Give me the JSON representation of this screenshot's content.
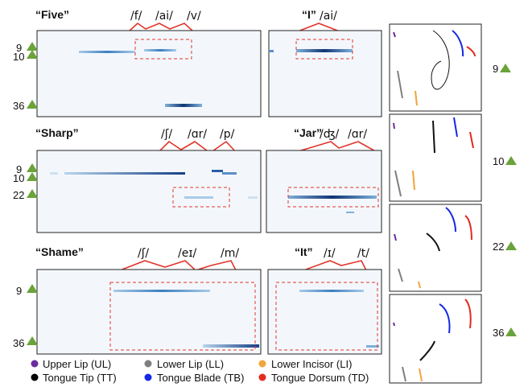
{
  "words": {
    "five": "“Five”",
    "i": "“I”",
    "sharp": "“Sharp”",
    "jar": "“Jar”",
    "shame": "“Shame”",
    "it": "“It”"
  },
  "phonemes": {
    "five": [
      "/f/",
      "/ai/",
      "/v/"
    ],
    "i": [
      "/ai/"
    ],
    "sharp": [
      "/ʃ/",
      "/ɑr/",
      "/p/"
    ],
    "jar": [
      "/ʤ/",
      "/ɑr/"
    ],
    "shame": [
      "/ʃ/",
      "/eɪ/",
      "/m/"
    ],
    "it": [
      "/ɪ/",
      "/t/"
    ]
  },
  "row_labels": {
    "row1": [
      "9",
      "10",
      "36"
    ],
    "row2": [
      "9",
      "10",
      "22"
    ],
    "row3": [
      "9",
      "36"
    ]
  },
  "side_labels": [
    "9",
    "10",
    "22",
    "36"
  ],
  "legend": [
    {
      "label": "Upper Lip (UL)",
      "color": "#6a2c9e"
    },
    {
      "label": "Lower Lip (LL)",
      "color": "#7f7f7f"
    },
    {
      "label": "Lower Incisor (LI)",
      "color": "#f2a43a"
    },
    {
      "label": "Tongue Tip (TT)",
      "color": "#000000"
    },
    {
      "label": "Tongue Blade (TB)",
      "color": "#1428e6"
    },
    {
      "label": "Tongue Dorsum (TD)",
      "color": "#e32b1f"
    }
  ],
  "colors": {
    "marker": "#6aa33a",
    "bracket": "#e3342a",
    "highlight_box": "#e3342a",
    "panel_bg": "#f3f7fc",
    "activation_dark": "#163f86",
    "activation_light": "#7fb0d9"
  }
}
